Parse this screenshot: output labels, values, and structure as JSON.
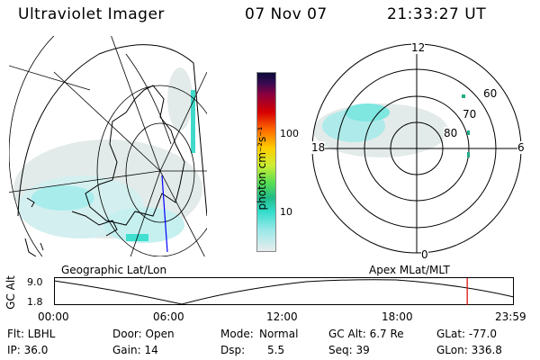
{
  "header": {
    "title": "Ultraviolet Imager",
    "date": "07 Nov 07",
    "time": "21:33:27 UT"
  },
  "colorbar": {
    "unit_label": "photon cm⁻²s⁻¹",
    "ticks": [
      "100",
      "10"
    ]
  },
  "polar_plot": {
    "mlt_labels": [
      "12",
      "18",
      "6",
      "0"
    ],
    "mlat_labels": [
      "60",
      "70",
      "80"
    ]
  },
  "captions": {
    "left": "Geographic Lat/Lon",
    "right": "Apex MLat/MLT"
  },
  "altitude_plot": {
    "ylabel": "GC Alt",
    "yticks": [
      "9.0",
      "1.8"
    ],
    "xticks": [
      "00:00",
      "06:00",
      "12:00",
      "18:00",
      "23:59"
    ],
    "marker_time": "21:33"
  },
  "info": {
    "flt": "Flt: LBHL",
    "ip": "IP: 36.0",
    "door": "Door: Open",
    "gain": "Gain: 14",
    "mode_label": "Mode:",
    "mode_value": "Normal",
    "dsp_label": "Dsp:",
    "dsp_value": "5.5",
    "gcalt": "GC Alt: 6.7 Re",
    "seq": "Seq: 39",
    "glat": "GLat: -77.0",
    "glon": "GLon: 336.8"
  }
}
